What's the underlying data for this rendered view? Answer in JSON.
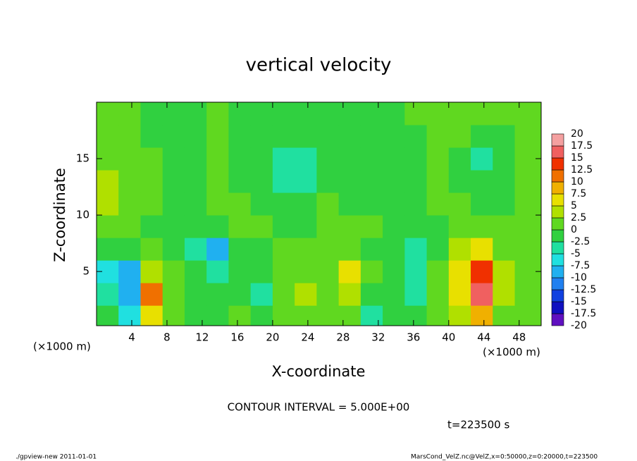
{
  "chart_data": {
    "type": "heatmap",
    "title": "vertical velocity",
    "xlabel": "X-coordinate",
    "ylabel": "Z-coordinate",
    "x_unit_labels": [
      "(×1000 m)",
      "(×1000 m)"
    ],
    "annotations": [
      "CONTOUR INTERVAL = 5.000E+00",
      "t=223500 s"
    ],
    "footer_left": "./gpview-new   2011-01-01",
    "footer_right": "MarsCond_VelZ.nc@VelZ,x=0:50000,z=0:20000,t=223500",
    "xlim": [
      0,
      50.5
    ],
    "ylim": [
      0.2,
      20
    ],
    "xticks": [
      4,
      8,
      12,
      16,
      20,
      24,
      28,
      32,
      36,
      40,
      44,
      48
    ],
    "yticks": [
      5,
      10,
      15
    ],
    "x": [
      1.25,
      3.75,
      6.25,
      8.75,
      11.25,
      13.75,
      16.25,
      18.75,
      21.25,
      23.75,
      26.25,
      28.75,
      31.25,
      33.75,
      36.25,
      38.75,
      41.25,
      43.75,
      46.25,
      48.75
    ],
    "y": [
      1,
      3,
      5,
      7,
      9,
      11,
      13,
      15,
      17,
      19
    ],
    "z": [
      [
        -2,
        -7,
        5,
        0,
        -1,
        -2,
        0,
        -2,
        0,
        2,
        0,
        2,
        -3,
        -1,
        -2,
        0,
        3,
        8,
        2,
        0
      ],
      [
        -5,
        -10,
        10,
        1,
        -2,
        -1,
        -1,
        -4,
        0,
        4,
        1,
        4,
        -1,
        -1,
        -3,
        0,
        6,
        15,
        4,
        0
      ],
      [
        -6,
        -8,
        4,
        0,
        -1,
        -4,
        -1,
        -2,
        0,
        1,
        1,
        5,
        0,
        -1,
        -4,
        0,
        6,
        14,
        3,
        0
      ],
      [
        -2,
        -2,
        0,
        -2,
        -3,
        -8,
        -1,
        -1,
        0,
        0,
        1,
        2,
        -1,
        -2,
        -5,
        -1,
        3,
        6,
        2,
        0
      ],
      [
        0,
        0,
        -1,
        -2,
        -2,
        -2,
        0,
        0,
        -1,
        -1,
        0,
        0,
        0,
        -1,
        -2,
        -1,
        0,
        0,
        0,
        0
      ],
      [
        3,
        2,
        0,
        -1,
        -1,
        1,
        0,
        -2,
        -2,
        -2,
        0,
        -1,
        -2,
        -2,
        -2,
        0,
        0,
        -1,
        -1,
        0
      ],
      [
        3,
        2,
        0,
        -1,
        -1,
        0,
        -1,
        -2,
        -3,
        -3,
        -2,
        -2,
        -2,
        -2,
        -1,
        0,
        -1,
        -2,
        -2,
        0
      ],
      [
        2,
        1,
        0,
        -1,
        -1,
        0,
        -1,
        -2,
        -3,
        -3,
        -2,
        -2,
        -2,
        -2,
        -1,
        0,
        -1,
        -3,
        -2,
        0
      ],
      [
        1,
        0,
        -1,
        -1,
        -1,
        0,
        -1,
        -2,
        -2,
        -2,
        -2,
        -2,
        -2,
        -2,
        -1,
        0,
        0,
        -1,
        -1,
        0
      ],
      [
        0,
        0,
        -1,
        -1,
        -1,
        0,
        -1,
        -1,
        -1,
        -1,
        -1,
        -1,
        -1,
        -1,
        0,
        0,
        0,
        0,
        0,
        0
      ]
    ],
    "colorbar_levels": [
      -20,
      -17.5,
      -15,
      -12.5,
      -10,
      -7.5,
      -5,
      -2.5,
      0,
      2.5,
      5,
      7.5,
      10,
      12.5,
      15,
      17.5,
      20
    ],
    "colorbar_colors": [
      "#6010c0",
      "#1010c0",
      "#1040e0",
      "#2080f0",
      "#20b0f0",
      "#20e0e0",
      "#20e0a0",
      "#30d040",
      "#60d820",
      "#b0e000",
      "#e8e000",
      "#f0b000",
      "#f07000",
      "#f03000",
      "#f06060",
      "#f4a0a0"
    ]
  }
}
